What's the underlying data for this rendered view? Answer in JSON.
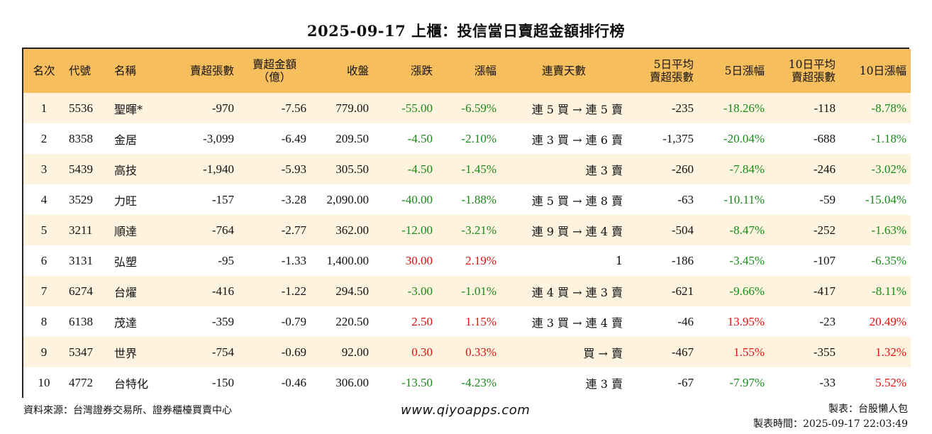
{
  "title": "2025-09-17 上櫃：投信當日賣超金額排行榜",
  "headers": {
    "rank": "名次",
    "code": "代號",
    "name": "名稱",
    "net_sell_lots": "賣超張數",
    "net_sell_amount_l1": "賣超金額",
    "net_sell_amount_l2": "（億）",
    "close": "收盤",
    "change": "漲跌",
    "change_pct": "漲幅",
    "streak": "連賣天數",
    "avg5_l1": "5日平均",
    "avg5_l2": "賣超張數",
    "pct5": "5日漲幅",
    "avg10_l1": "10日平均",
    "avg10_l2": "賣超張數",
    "pct10": "10日漲幅"
  },
  "rows": [
    {
      "rank": "1",
      "code": "5536",
      "name": "聖暉*",
      "lots": "-970",
      "amount": "-7.56",
      "close": "779.00",
      "change": "-55.00",
      "change_pct": "-6.59%",
      "streak": "連 5 買 → 連 5 賣",
      "avg5": "-235",
      "pct5": "-18.26%",
      "avg10": "-118",
      "pct10": "-8.78%",
      "change_dir": "neg",
      "pct5_dir": "neg",
      "pct10_dir": "neg"
    },
    {
      "rank": "2",
      "code": "8358",
      "name": "金居",
      "lots": "-3,099",
      "amount": "-6.49",
      "close": "209.50",
      "change": "-4.50",
      "change_pct": "-2.10%",
      "streak": "連 3 買 → 連 6 賣",
      "avg5": "-1,375",
      "pct5": "-20.04%",
      "avg10": "-688",
      "pct10": "-1.18%",
      "change_dir": "neg",
      "pct5_dir": "neg",
      "pct10_dir": "neg"
    },
    {
      "rank": "3",
      "code": "5439",
      "name": "高技",
      "lots": "-1,940",
      "amount": "-5.93",
      "close": "305.50",
      "change": "-4.50",
      "change_pct": "-1.45%",
      "streak": "連 3 賣",
      "avg5": "-260",
      "pct5": "-7.84%",
      "avg10": "-246",
      "pct10": "-3.02%",
      "change_dir": "neg",
      "pct5_dir": "neg",
      "pct10_dir": "neg"
    },
    {
      "rank": "4",
      "code": "3529",
      "name": "力旺",
      "lots": "-157",
      "amount": "-3.28",
      "close": "2,090.00",
      "change": "-40.00",
      "change_pct": "-1.88%",
      "streak": "連 5 買 → 連 8 賣",
      "avg5": "-63",
      "pct5": "-10.11%",
      "avg10": "-59",
      "pct10": "-15.04%",
      "change_dir": "neg",
      "pct5_dir": "neg",
      "pct10_dir": "neg"
    },
    {
      "rank": "5",
      "code": "3211",
      "name": "順達",
      "lots": "-764",
      "amount": "-2.77",
      "close": "362.00",
      "change": "-12.00",
      "change_pct": "-3.21%",
      "streak": "連 9 買 → 連 4 賣",
      "avg5": "-504",
      "pct5": "-8.47%",
      "avg10": "-252",
      "pct10": "-1.63%",
      "change_dir": "neg",
      "pct5_dir": "neg",
      "pct10_dir": "neg"
    },
    {
      "rank": "6",
      "code": "3131",
      "name": "弘塑",
      "lots": "-95",
      "amount": "-1.33",
      "close": "1,400.00",
      "change": "30.00",
      "change_pct": "2.19%",
      "streak": "1",
      "avg5": "-186",
      "pct5": "-3.45%",
      "avg10": "-107",
      "pct10": "-6.35%",
      "change_dir": "pos",
      "pct5_dir": "neg",
      "pct10_dir": "neg"
    },
    {
      "rank": "7",
      "code": "6274",
      "name": "台燿",
      "lots": "-416",
      "amount": "-1.22",
      "close": "294.50",
      "change": "-3.00",
      "change_pct": "-1.01%",
      "streak": "連 4 買 → 連 3 賣",
      "avg5": "-621",
      "pct5": "-9.66%",
      "avg10": "-417",
      "pct10": "-8.11%",
      "change_dir": "neg",
      "pct5_dir": "neg",
      "pct10_dir": "neg"
    },
    {
      "rank": "8",
      "code": "6138",
      "name": "茂達",
      "lots": "-359",
      "amount": "-0.79",
      "close": "220.50",
      "change": "2.50",
      "change_pct": "1.15%",
      "streak": "連 3 買 → 連 4 賣",
      "avg5": "-46",
      "pct5": "13.95%",
      "avg10": "-23",
      "pct10": "20.49%",
      "change_dir": "pos",
      "pct5_dir": "pos",
      "pct10_dir": "pos"
    },
    {
      "rank": "9",
      "code": "5347",
      "name": "世界",
      "lots": "-754",
      "amount": "-0.69",
      "close": "92.00",
      "change": "0.30",
      "change_pct": "0.33%",
      "streak": "買 → 賣",
      "avg5": "-467",
      "pct5": "1.55%",
      "avg10": "-355",
      "pct10": "1.32%",
      "change_dir": "pos",
      "pct5_dir": "pos",
      "pct10_dir": "pos"
    },
    {
      "rank": "10",
      "code": "4772",
      "name": "台特化",
      "lots": "-150",
      "amount": "-0.46",
      "close": "306.00",
      "change": "-13.50",
      "change_pct": "-4.23%",
      "streak": "連 3 賣",
      "avg5": "-67",
      "pct5": "-7.97%",
      "avg10": "-33",
      "pct10": "5.52%",
      "change_dir": "neg",
      "pct5_dir": "neg",
      "pct10_dir": "pos"
    }
  ],
  "footer": {
    "source": "資料來源：台灣證券交易所、證券櫃檯買賣中心",
    "website": "www.qiyoapps.com",
    "author": "製表：台股懶人包",
    "timestamp": "製表時間：2025-09-17 22:03:49"
  },
  "colors": {
    "header_bg": "#f7be5e",
    "stripe_bg": "#fdf3de",
    "negative": "#1a8a1a",
    "positive": "#e01010"
  }
}
